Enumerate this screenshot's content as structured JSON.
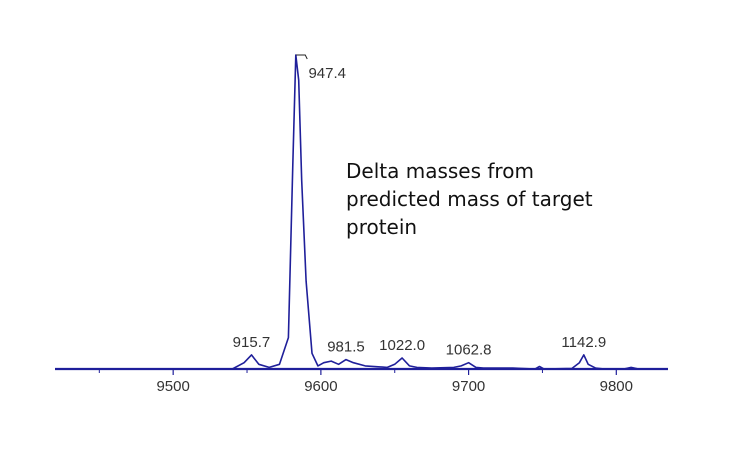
{
  "chart_data": {
    "type": "line",
    "title": "",
    "xlabel": "",
    "ylabel": "",
    "xlim": [
      9420,
      9835
    ],
    "ylim": [
      0,
      100
    ],
    "x_ticks": [
      9500,
      9600,
      9700,
      9800
    ],
    "x_tick_labels": [
      "9500",
      "9600",
      "9700",
      "9800"
    ],
    "grid": false,
    "legend": "none",
    "line_color": "#1f1f9a",
    "axis_color": "#1f1f9a",
    "series": [
      {
        "x": [
          9420,
          9500,
          9540,
          9548,
          9553,
          9558,
          9565,
          9572,
          9578,
          9581,
          9583,
          9585,
          9587,
          9590,
          9594,
          9598,
          9602,
          9607,
          9612,
          9617,
          9622,
          9630,
          9645,
          9650,
          9655,
          9660,
          9665,
          9675,
          9690,
          9695,
          9700,
          9705,
          9710,
          9730,
          9745,
          9748,
          9751,
          9770,
          9775,
          9778,
          9781,
          9786,
          9792,
          9805,
          9810,
          9815,
          9835
        ],
        "y": [
          0,
          0,
          0,
          2,
          4.5,
          1.5,
          0.5,
          1.5,
          10,
          65,
          100,
          92,
          60,
          28,
          5,
          1,
          2,
          2.5,
          1.5,
          3,
          2,
          1,
          0.5,
          1.5,
          3.5,
          1,
          0.5,
          0.3,
          0.5,
          1,
          2,
          0.5,
          0.3,
          0.3,
          0,
          0.8,
          0,
          0.2,
          2,
          4.5,
          1.5,
          0.3,
          0,
          0,
          0.5,
          0,
          0
        ]
      }
    ],
    "peak_labels": [
      {
        "x": 9553,
        "y": 4.5,
        "text": "915.7"
      },
      {
        "x": 9584,
        "y": 100,
        "text": "947.4"
      },
      {
        "x": 9617,
        "y": 3,
        "text": "981.5"
      },
      {
        "x": 9655,
        "y": 3.5,
        "text": "1022.0"
      },
      {
        "x": 9700,
        "y": 2,
        "text": "1062.8"
      },
      {
        "x": 9778,
        "y": 4.5,
        "text": "1142.9"
      }
    ],
    "annotation": [
      "Delta masses from",
      "predicted mass of target",
      "protein"
    ]
  }
}
